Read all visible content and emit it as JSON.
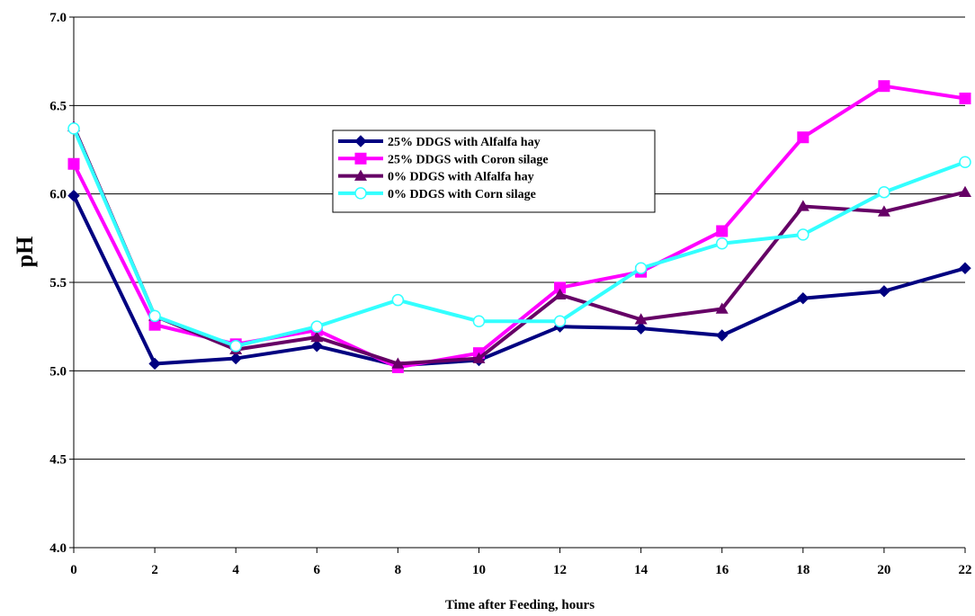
{
  "chart_data": {
    "type": "line",
    "title": "",
    "xlabel": "Time after Feeding, hours",
    "ylabel": "pH",
    "x": [
      0,
      2,
      4,
      6,
      8,
      10,
      12,
      14,
      16,
      18,
      20,
      22
    ],
    "x_tick_labels": [
      "0",
      "2",
      "4",
      "6",
      "8",
      "10",
      "12",
      "14",
      "16",
      "18",
      "20",
      "22"
    ],
    "ylim": [
      4.0,
      7.0
    ],
    "y_ticks": [
      4.0,
      4.5,
      5.0,
      5.5,
      6.0,
      6.5,
      7.0
    ],
    "y_tick_labels": [
      "4.0",
      "4.5",
      "5.0",
      "5.5",
      "6.0",
      "6.5",
      "7.0"
    ],
    "grid": "horizontal",
    "legend_position": "upper-center",
    "series": [
      {
        "name": "25% DDGS with Alfalfa hay",
        "color": "#000080",
        "marker": "diamond",
        "values": [
          5.99,
          5.04,
          5.07,
          5.14,
          5.03,
          5.06,
          5.25,
          5.24,
          5.2,
          5.41,
          5.45,
          5.58
        ]
      },
      {
        "name": "25% DDGS with Coron silage",
        "color": "#ff00ff",
        "marker": "square",
        "values": [
          6.17,
          5.26,
          5.15,
          5.23,
          5.02,
          5.1,
          5.47,
          5.56,
          5.79,
          6.32,
          6.61,
          6.54
        ]
      },
      {
        "name": "0% DDGS with Alfalfa hay",
        "color": "#660066",
        "marker": "triangle",
        "values": [
          6.38,
          5.31,
          5.12,
          5.19,
          5.04,
          5.07,
          5.43,
          5.29,
          5.35,
          5.93,
          5.9,
          6.01
        ]
      },
      {
        "name": "0% DDGS with Corn silage",
        "color": "#33ffff",
        "marker": "circle-open",
        "values": [
          6.37,
          5.31,
          5.14,
          5.25,
          5.4,
          5.28,
          5.28,
          5.58,
          5.72,
          5.77,
          6.01,
          6.18
        ]
      }
    ]
  }
}
